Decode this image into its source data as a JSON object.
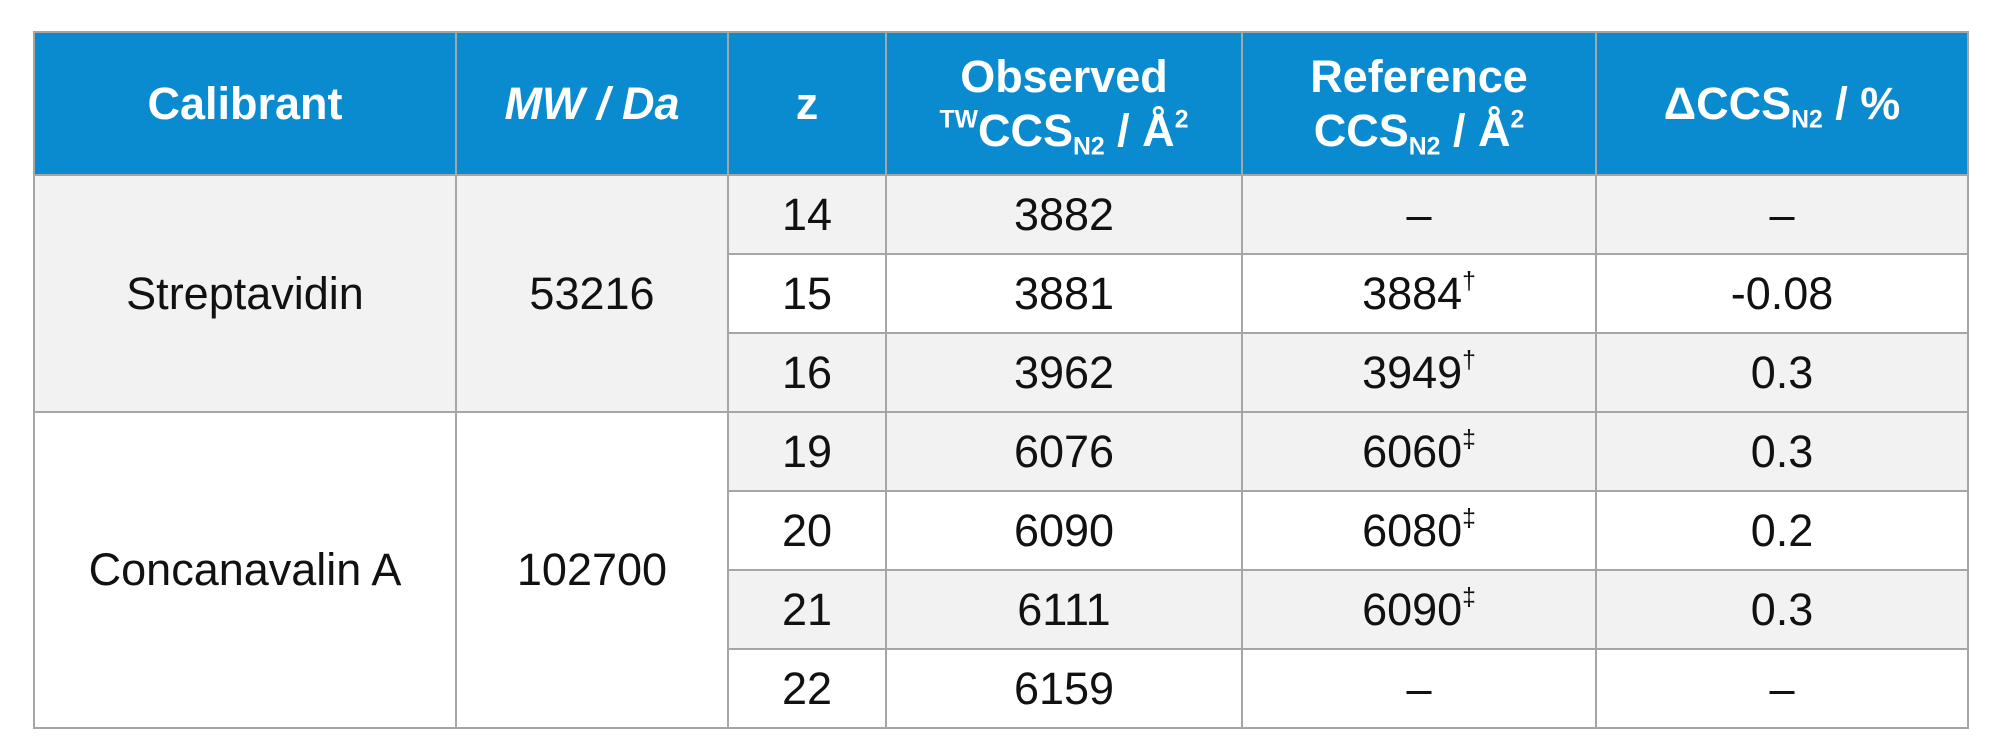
{
  "header": {
    "calibrant": "Calibrant",
    "mw": "MW / Da",
    "z": "z",
    "observed_line1": "Observed",
    "observed_sup": "TW",
    "observed_base": "CCS",
    "observed_sub": "N2",
    "observed_unit": " / Å",
    "observed_exp": "2",
    "reference_line1": "Reference",
    "reference_base": "CCS",
    "reference_sub": "N2",
    "reference_unit": " / Å",
    "reference_exp": "2",
    "delta_base": "ΔCCS",
    "delta_sub": "N2",
    "delta_unit": " / %"
  },
  "groups": [
    {
      "calibrant": "Streptavidin",
      "mw": "53216",
      "rows": [
        {
          "z": "14",
          "observed": "3882",
          "reference": "–",
          "ref_mark": "",
          "delta": "–"
        },
        {
          "z": "15",
          "observed": "3881",
          "reference": "3884",
          "ref_mark": "†",
          "delta": "-0.08"
        },
        {
          "z": "16",
          "observed": "3962",
          "reference": "3949",
          "ref_mark": "†",
          "delta": "0.3"
        }
      ]
    },
    {
      "calibrant": "Concanavalin A",
      "mw": "102700",
      "rows": [
        {
          "z": "19",
          "observed": "6076",
          "reference": "6060",
          "ref_mark": "‡",
          "delta": "0.3"
        },
        {
          "z": "20",
          "observed": "6090",
          "reference": "6080",
          "ref_mark": "‡",
          "delta": "0.2"
        },
        {
          "z": "21",
          "observed": "6111",
          "reference": "6090",
          "ref_mark": "‡",
          "delta": "0.3"
        },
        {
          "z": "22",
          "observed": "6159",
          "reference": "–",
          "ref_mark": "",
          "delta": "–"
        }
      ]
    }
  ],
  "colors": {
    "header_bg": "#0a8bd0",
    "header_text": "#ffffff",
    "row_shade": "#f2f2f3",
    "row_plain": "#ffffff",
    "border": "#a6a6a6"
  }
}
